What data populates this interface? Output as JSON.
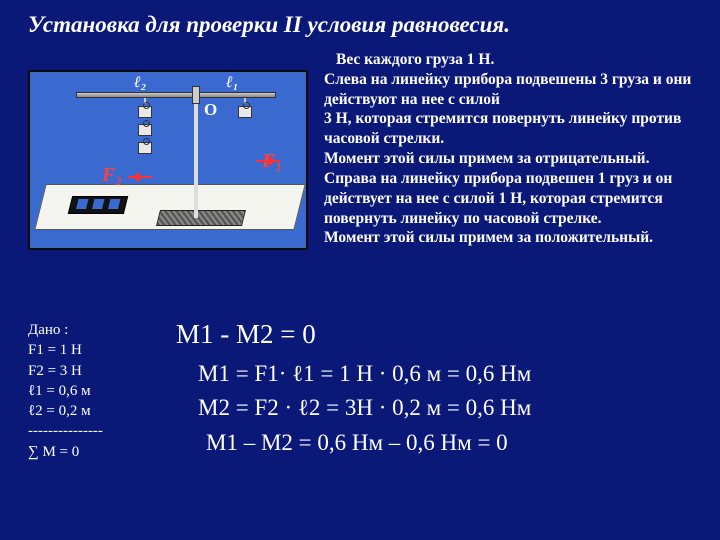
{
  "title": "Установка для проверки II условия равновесия.",
  "diagram": {
    "bg_color": "#3a6acf",
    "labels": {
      "l2": "ℓ₂",
      "l1": "ℓ₁",
      "O": "О",
      "F2": "F₂",
      "F1": "F₁"
    },
    "left_weights": 3,
    "right_weights": 1,
    "arrow_color": "#ff3030"
  },
  "description": {
    "line1": "Вес каждого груза 1 Н.",
    "body1": "Слева на линейку прибора подвешены 3 груза  и они действуют  на нее с силой",
    "body2": "3 Н, которая стремится повернуть линейку против часовой стрелки.",
    "body3": "Момент этой силы примем за отрицательный.",
    "body4": "Справа на линейку прибора подвешен 1 груз  и он действует  на нее с силой 1 Н, которая стремится повернуть линейку по часовой стрелке.",
    "body5": "Момент этой силы примем за положительный."
  },
  "given": {
    "header": "Дано :",
    "l1": "F1 = 1 Н",
    "l2": "F2 = 3 Н",
    "l3": "ℓ1  = 0,6 м",
    "l4": "ℓ2  = 0,2 м",
    "sep": "---------------",
    "res": "∑ М = 0"
  },
  "equations": {
    "e1": "М1 - М2 = 0",
    "e2": "М1 = F1· ℓ1 = 1 Н · 0,6 м = 0,6 Нм",
    "e3": "М2 = F2 · ℓ2 = 3Н · 0,2 м = 0,6 Нм",
    "e4": "М1 – М2 = 0,6 Нм – 0,6 Нм = 0"
  },
  "colors": {
    "page_bg": "#0a1878",
    "text": "#ffffff",
    "force_label": "#ff4040"
  }
}
